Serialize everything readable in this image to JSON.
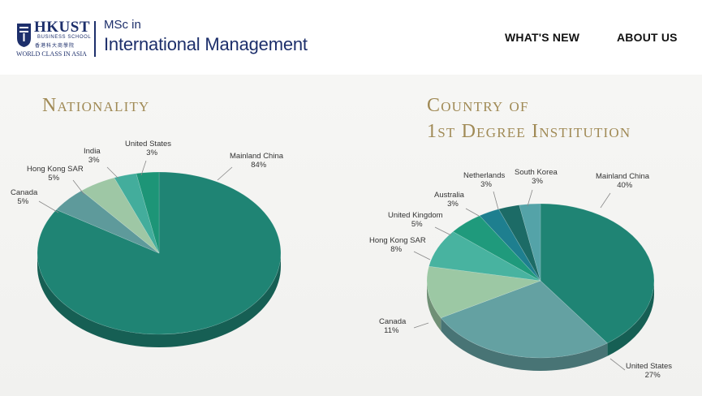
{
  "header": {
    "logo": {
      "name": "HKUST",
      "subtitle": "BUSINESS SCHOOL",
      "chinese": "香港科大商學院",
      "tagline": "WORLD CLASS IN ASIA",
      "crest_icon": "hkust-crest-icon"
    },
    "program": {
      "line1": "MSc in",
      "line2": "International Management"
    },
    "nav": [
      {
        "label": "WHAT'S NEW"
      },
      {
        "label": "ABOUT US"
      }
    ]
  },
  "colors": {
    "brand_navy": "#1d2f6b",
    "title_gold": "#a08a55"
  },
  "chart_data": [
    {
      "type": "pie",
      "title": "Nationality",
      "slices": [
        {
          "label": "Mainland China",
          "value": 84,
          "percent": "84%",
          "color": "#1f8474"
        },
        {
          "label": "Canada",
          "value": 5,
          "percent": "5%",
          "color": "#5e9a9b"
        },
        {
          "label": "Hong Kong SAR",
          "value": 5,
          "percent": "5%",
          "color": "#9ec7a5"
        },
        {
          "label": "India",
          "value": 3,
          "percent": "3%",
          "color": "#43ad9c"
        },
        {
          "label": "United States",
          "value": 3,
          "percent": "3%",
          "color": "#1d9577"
        }
      ]
    },
    {
      "type": "pie",
      "title_lines": [
        "Country of",
        "1st Degree Institution"
      ],
      "slices": [
        {
          "label": "Mainland China",
          "value": 40,
          "percent": "40%",
          "color": "#1f8474"
        },
        {
          "label": "United States",
          "value": 27,
          "percent": "27%",
          "color": "#64a1a2"
        },
        {
          "label": "Canada",
          "value": 11,
          "percent": "11%",
          "color": "#9cc8a4"
        },
        {
          "label": "Hong Kong SAR",
          "value": 8,
          "percent": "8%",
          "color": "#48b3a0"
        },
        {
          "label": "United Kingdom",
          "value": 5,
          "percent": "5%",
          "color": "#1f9a7c"
        },
        {
          "label": "Australia",
          "value": 3,
          "percent": "3%",
          "color": "#1e7f8f"
        },
        {
          "label": "Netherlands",
          "value": 3,
          "percent": "3%",
          "color": "#1c6b66"
        },
        {
          "label": "South Korea",
          "value": 3,
          "percent": "3%",
          "color": "#54a3a8"
        }
      ]
    }
  ]
}
